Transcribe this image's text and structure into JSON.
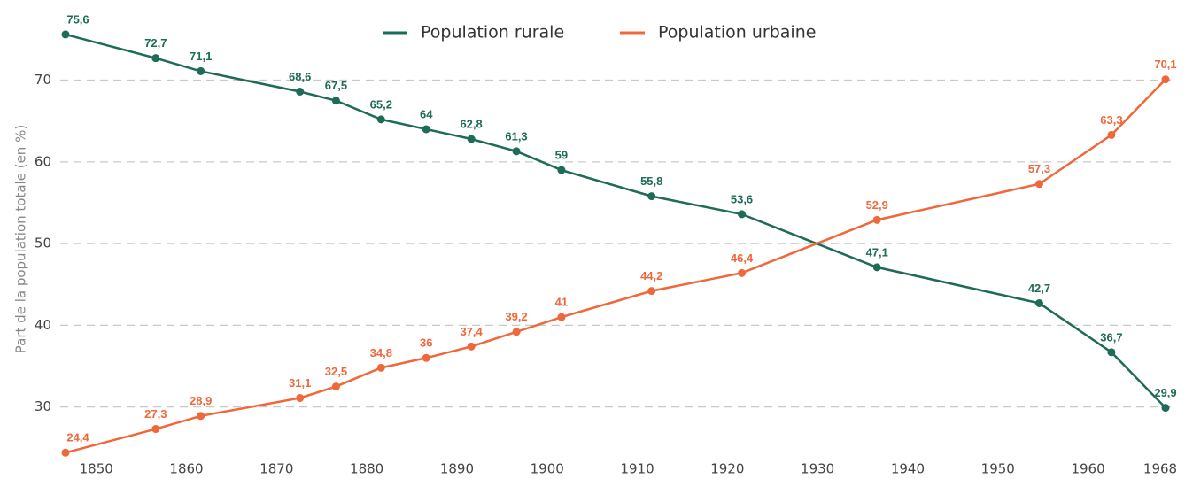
{
  "chart_data": {
    "type": "line",
    "y_label": "Part de la population totale (en %)",
    "x": [
      1846,
      1856,
      1861,
      1872,
      1876,
      1881,
      1886,
      1891,
      1896,
      1901,
      1911,
      1921,
      1936,
      1954,
      1962,
      1968
    ],
    "series": [
      {
        "name": "Population rurale",
        "color": "#1d6b58",
        "values": [
          75.6,
          72.7,
          71.1,
          68.6,
          67.5,
          65.2,
          64,
          62.8,
          61.3,
          59,
          55.8,
          53.6,
          47.1,
          42.7,
          36.7,
          29.9
        ],
        "value_labels": [
          "75,6",
          "72,7",
          "71,1",
          "68,6",
          "67,5",
          "65,2",
          "64",
          "62,8",
          "61,3",
          "59",
          "55,8",
          "53,6",
          "47,1",
          "42,7",
          "36,7",
          "29,9"
        ]
      },
      {
        "name": "Population urbaine",
        "color": "#f0683a",
        "values": [
          24.4,
          27.3,
          28.9,
          31.1,
          32.5,
          34.8,
          36,
          37.4,
          39.2,
          41,
          44.2,
          46.4,
          52.9,
          57.3,
          63.3,
          70.1
        ],
        "value_labels": [
          "24,4",
          "27,3",
          "28,9",
          "31,1",
          "32,5",
          "34,8",
          "36",
          "37,4",
          "39,2",
          "41",
          "44,2",
          "46,4",
          "52,9",
          "57,3",
          "63,3",
          "70,1"
        ]
      }
    ],
    "xlim": [
      1846,
      1968
    ],
    "xticks": [
      1850,
      1860,
      1870,
      1880,
      1890,
      1900,
      1910,
      1920,
      1930,
      1940,
      1950,
      1960,
      1968
    ],
    "ylim": [
      24,
      77
    ],
    "yticks": [
      30,
      40,
      50,
      60,
      70
    ],
    "grid": true,
    "legend": "top"
  }
}
